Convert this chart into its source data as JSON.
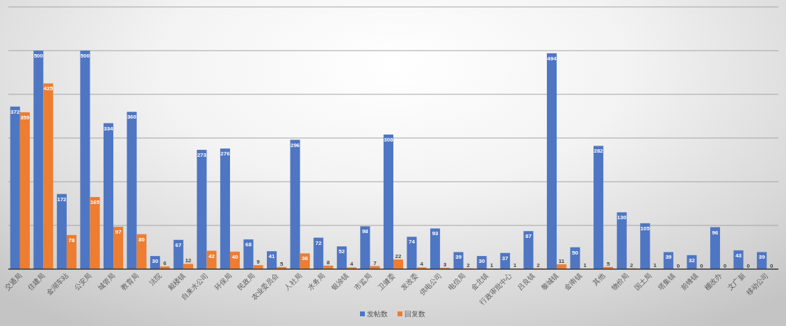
{
  "chart_data": {
    "type": "bar",
    "categories": [
      "交通局",
      "住建局",
      "金湖车站",
      "公安局",
      "城管局",
      "教育局",
      "法院",
      "戴楼镇",
      "自来水公司",
      "环保局",
      "民政局",
      "农业委员会",
      "人社局",
      "水务局",
      "银涂镇",
      "市监局",
      "卫健委",
      "发改委",
      "供电公司",
      "电信局",
      "金北镇",
      "行政审批中心",
      "吕良镇",
      "黎城镇",
      "金南镇",
      "其他",
      "物价局",
      "国土局",
      "塔集镇",
      "前锋镇",
      "棚改办",
      "文广新",
      "移动公司"
    ],
    "series": [
      {
        "name": "发帖数",
        "color": "#4f76c3",
        "values": [
          372,
          500,
          172,
          500,
          334,
          360,
          30,
          67,
          273,
          276,
          68,
          41,
          296,
          72,
          52,
          98,
          308,
          74,
          93,
          39,
          30,
          37,
          87,
          494,
          50,
          282,
          130,
          105,
          39,
          32,
          96,
          43,
          39
        ]
      },
      {
        "name": "回复数",
        "color": "#ed7d31",
        "values": [
          359,
          425,
          78,
          165,
          97,
          80,
          6,
          12,
          42,
          40,
          9,
          5,
          36,
          8,
          4,
          7,
          22,
          4,
          3,
          2,
          1,
          1,
          2,
          11,
          1,
          5,
          2,
          1,
          0,
          0,
          0,
          0,
          0
        ]
      }
    ],
    "ylim": [
      0,
      600
    ],
    "yticks": [
      {
        "value": 0,
        "label": null
      },
      {
        "value": 100,
        "label": null
      },
      {
        "value": 200,
        "label": null
      },
      {
        "value": 300,
        "label": null
      },
      {
        "value": 400,
        "label": null
      },
      {
        "value": 500,
        "label": null
      },
      {
        "value": 600,
        "label": null
      }
    ],
    "tick_labels": "x",
    "grid": "y",
    "legend": "bottom",
    "data_labels": true
  }
}
